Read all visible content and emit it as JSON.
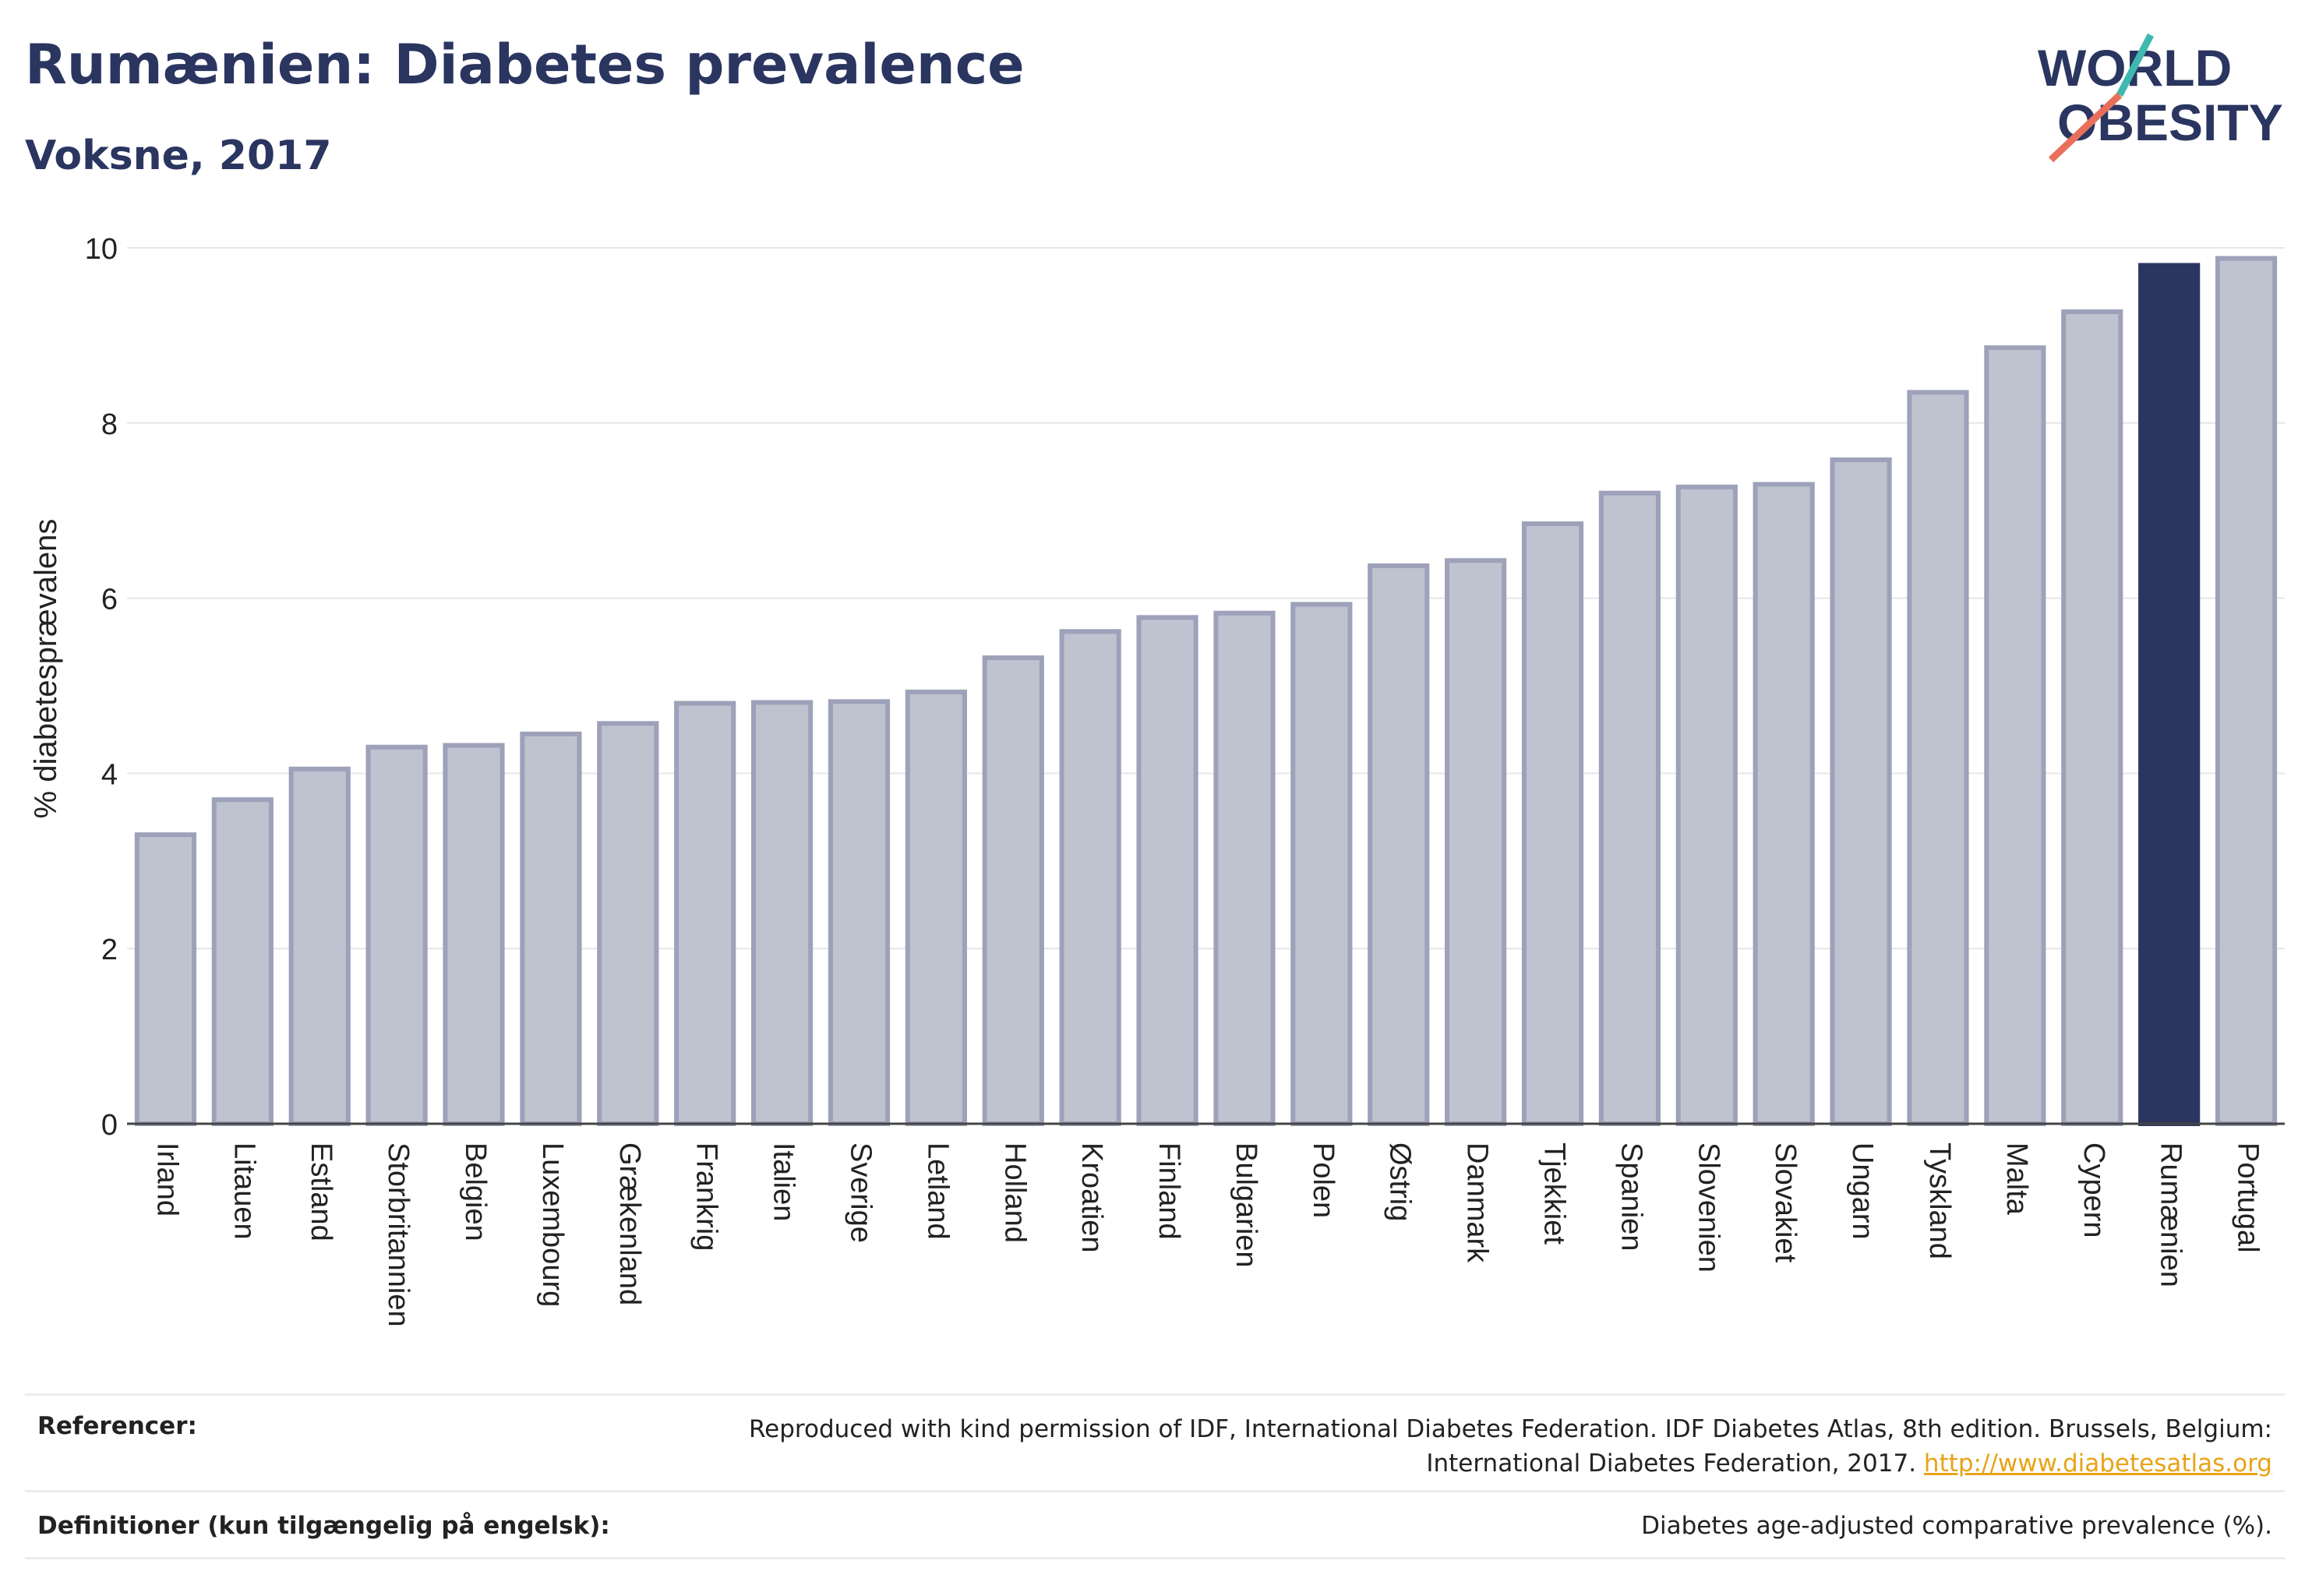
{
  "header": {
    "title": "Rumænien: Diabetes prevalence",
    "subtitle": "Voksne, 2017",
    "logo_line1": "WORLD",
    "logo_line2": "OBESITY"
  },
  "colors": {
    "highlight": "#2a3560",
    "bar_fill": "#bfc2cf",
    "bar_stroke": "#9da1b9",
    "logo_text": "#2a3560",
    "logo_teal": "#3fb8b0",
    "logo_coral": "#e8705a",
    "link": "#e8a317"
  },
  "chart_data": {
    "type": "bar",
    "ylabel": "% diabetesprævalens",
    "xlabel": "",
    "ylim": [
      0,
      10
    ],
    "yticks": [
      0,
      2,
      4,
      6,
      8,
      10
    ],
    "grid": true,
    "highlight_category": "Rumænien",
    "categories": [
      "Irland",
      "Litauen",
      "Estland",
      "Storbritannien",
      "Belgien",
      "Luxembourg",
      "Grækenland",
      "Frankrig",
      "Italien",
      "Sverige",
      "Letland",
      "Holland",
      "Kroatien",
      "Finland",
      "Bulgarien",
      "Polen",
      "Østrig",
      "Danmark",
      "Tjekkiet",
      "Spanien",
      "Slovenien",
      "Slovakiet",
      "Ungarn",
      "Tyskland",
      "Malta",
      "Cypern",
      "Rumænien",
      "Portugal"
    ],
    "values": [
      3.3,
      3.7,
      4.05,
      4.3,
      4.32,
      4.45,
      4.57,
      4.8,
      4.81,
      4.82,
      4.93,
      5.32,
      5.62,
      5.78,
      5.83,
      5.93,
      6.37,
      6.43,
      6.85,
      7.2,
      7.27,
      7.3,
      7.58,
      8.35,
      8.86,
      9.27,
      9.8,
      9.88
    ]
  },
  "footer": {
    "references_label": "Referencer:",
    "references_text": "Reproduced with kind permission of IDF, International Diabetes Federation. IDF Diabetes Atlas, 8th edition. Brussels, Belgium: International Diabetes Federation, 2017.",
    "references_link": "http://www.diabetesatlas.org",
    "definitions_label": "Definitioner (kun tilgængelig på engelsk):",
    "definitions_text": "Diabetes age-adjusted comparative prevalence (%)."
  }
}
